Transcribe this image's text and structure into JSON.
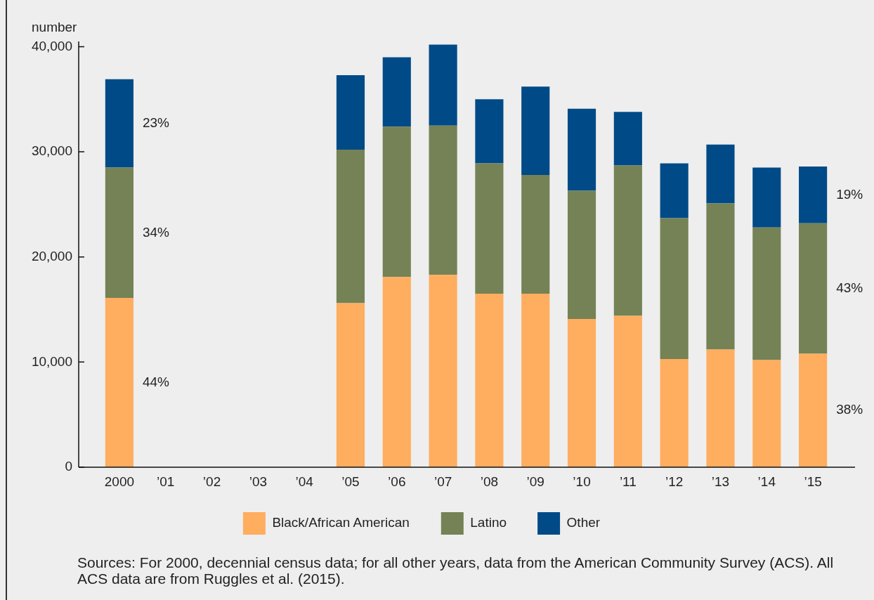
{
  "chart_data": {
    "type": "bar",
    "stacked": true,
    "categories": [
      "2000",
      "’01",
      "’02",
      "’03",
      "’04",
      "’05",
      "’06",
      "’07",
      "’08",
      "’09",
      "’10",
      "’11",
      "’12",
      "’13",
      "’14",
      "’15"
    ],
    "series": [
      {
        "name": "Black/African American",
        "color": "#ffad5f",
        "values": [
          16100,
          null,
          null,
          null,
          null,
          15600,
          18100,
          18300,
          16500,
          16500,
          14100,
          14400,
          10300,
          11200,
          10200,
          10800
        ]
      },
      {
        "name": "Latino",
        "color": "#748255",
        "values": [
          12400,
          null,
          null,
          null,
          null,
          14600,
          14300,
          14200,
          12400,
          11300,
          12200,
          14300,
          13400,
          13900,
          12600,
          12400
        ]
      },
      {
        "name": "Other",
        "color": "#004a87",
        "values": [
          8400,
          null,
          null,
          null,
          null,
          7100,
          6600,
          7700,
          6100,
          8400,
          7800,
          5100,
          5200,
          5600,
          5700,
          5400
        ]
      }
    ],
    "ylabel": "number",
    "ylim": [
      0,
      40500
    ],
    "yticks": [
      0,
      {
        "value": 10000,
        "label": "10,000"
      },
      {
        "value": 20000,
        "label": "20,000"
      },
      {
        "value": 30000,
        "label": "30,000"
      },
      {
        "value": 40000,
        "label": "40,000"
      }
    ],
    "legend": "bottom",
    "annotations": [
      "23%",
      "34%",
      "44%",
      "19%",
      "43%",
      "38%",
      "Sources: For 2000, decennial census data; for all other years, data from the American Community Survey (ACS). All ACS data are from Ruggles et al. (2015)."
    ]
  }
}
